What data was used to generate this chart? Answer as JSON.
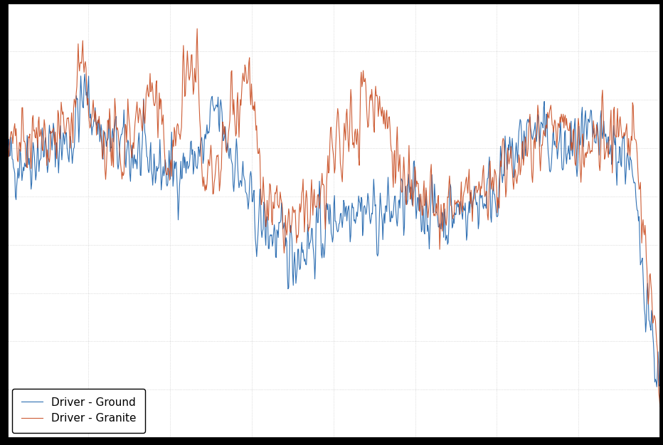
{
  "title": "",
  "xlabel": "",
  "ylabel": "",
  "color_ground": "#3070b3",
  "color_granite": "#c84b1f",
  "legend_ground": "Driver - Ground",
  "legend_granite": "Driver - Granite",
  "background_color": "#ffffff",
  "grid_color": "#aaaaaa",
  "figsize": [
    9.32,
    6.25
  ],
  "dpi": 100,
  "xlim": [
    0,
    1000
  ],
  "ylim": [
    -90,
    10
  ],
  "seed": 42,
  "n_points": 1000
}
